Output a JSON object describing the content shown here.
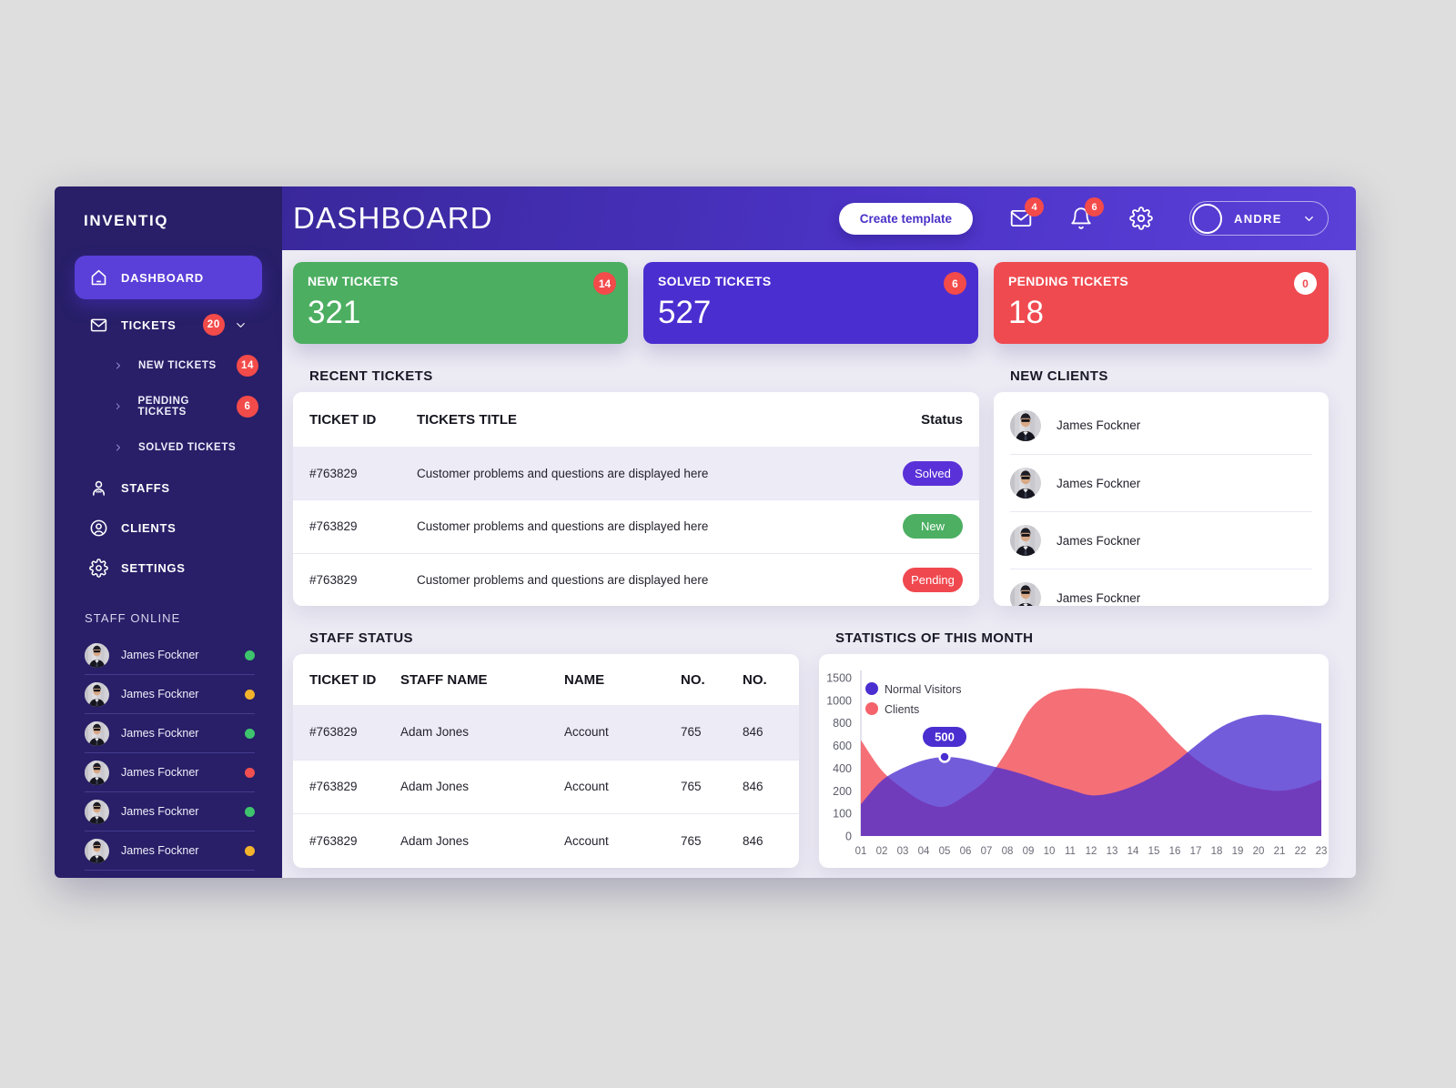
{
  "brand": {
    "name": "INVENTIQ"
  },
  "header": {
    "title": "DASHBOARD",
    "create_button": "Create template",
    "mail_badge": "4",
    "bell_badge": "6",
    "user": {
      "name": "ANDRE"
    }
  },
  "sidebar": {
    "dashboard": {
      "label": "DASHBOARD"
    },
    "tickets": {
      "label": "TICKETS",
      "badge": "20"
    },
    "submenu": [
      {
        "label": "NEW TICKETS",
        "badge": "14"
      },
      {
        "label": "PENDING TICKETS",
        "badge": "6"
      },
      {
        "label": "SOLVED TICKETS",
        "badge": ""
      }
    ],
    "staffs": {
      "label": "STAFFS"
    },
    "clients": {
      "label": "CLIENTS"
    },
    "settings": {
      "label": "SETTINGS"
    },
    "staff_online": {
      "title": "STAFF ONLINE",
      "status_colors": {
        "online": "#3ec46d",
        "away": "#f3b32b",
        "busy": "#f25050"
      },
      "members": [
        {
          "name": "James Fockner",
          "status": "online"
        },
        {
          "name": "James Fockner",
          "status": "away"
        },
        {
          "name": "James Fockner",
          "status": "online"
        },
        {
          "name": "James Fockner",
          "status": "busy"
        },
        {
          "name": "James Fockner",
          "status": "online"
        },
        {
          "name": "James Fockner",
          "status": "away"
        }
      ]
    }
  },
  "stats": [
    {
      "label": "NEW TICKETS",
      "value": "321",
      "badge": "14",
      "color": "#4cae61",
      "badge_style": "red"
    },
    {
      "label": "SOLVED TICKETS",
      "value": "527",
      "badge": "6",
      "color": "#4b2ed0",
      "badge_style": "red"
    },
    {
      "label": "PENDING TICKETS",
      "value": "18",
      "badge": "0",
      "color": "#ef4a50",
      "badge_style": "white"
    }
  ],
  "recent_tickets": {
    "title": "RECENT TICKETS",
    "columns": [
      "TICKET ID",
      "TICKETS TITLE",
      "Status"
    ],
    "rows": [
      {
        "id": "#763829",
        "title": "Customer problems and questions are displayed here",
        "status": "Solved",
        "status_color": "#5a31d8"
      },
      {
        "id": "#763829",
        "title": "Customer problems and questions are displayed here",
        "status": "New",
        "status_color": "#4caf62"
      },
      {
        "id": "#763829",
        "title": "Customer problems and questions are displayed here",
        "status": "Pending",
        "status_color": "#f0484f"
      }
    ]
  },
  "new_clients": {
    "title": "NEW CLIENTS",
    "clients": [
      {
        "name": "James Fockner"
      },
      {
        "name": "James Fockner"
      },
      {
        "name": "James Fockner"
      },
      {
        "name": "James Fockner"
      }
    ]
  },
  "staff_status": {
    "title": "STAFF STATUS",
    "columns": [
      "TICKET ID",
      "STAFF NAME",
      "NAME",
      "NO.",
      "NO."
    ],
    "rows": [
      {
        "id": "#763829",
        "staff_name": "Adam Jones",
        "name": "Account",
        "no1": "765",
        "no2": "846"
      },
      {
        "id": "#763829",
        "staff_name": "Adam Jones",
        "name": "Account",
        "no1": "765",
        "no2": "846"
      },
      {
        "id": "#763829",
        "staff_name": "Adam Jones",
        "name": "Account",
        "no1": "765",
        "no2": "846"
      }
    ]
  },
  "chart_data": {
    "type": "area",
    "title": "STATISTICS OF THIS MONTH",
    "x_labels": [
      "01",
      "02",
      "03",
      "04",
      "05",
      "06",
      "07",
      "08",
      "09",
      "10",
      "11",
      "12",
      "13",
      "14",
      "15",
      "16",
      "17",
      "18",
      "19",
      "20",
      "21",
      "22",
      "23"
    ],
    "yticks": [
      0,
      100,
      200,
      400,
      600,
      800,
      1000,
      1500
    ],
    "grid": false,
    "legend_position": "top-left",
    "series": [
      {
        "name": "Normal Visitors",
        "color": "#4b2ed0",
        "values": [
          140,
          290,
          400,
          470,
          500,
          480,
          430,
          385,
          330,
          265,
          210,
          180,
          190,
          240,
          330,
          450,
          600,
          740,
          830,
          870,
          865,
          830,
          795
        ]
      },
      {
        "name": "Clients",
        "color": "#f4636b",
        "values": [
          650,
          380,
          220,
          150,
          130,
          180,
          300,
          560,
          900,
          1150,
          1250,
          1260,
          1200,
          1050,
          850,
          650,
          480,
          360,
          270,
          220,
          200,
          230,
          300
        ]
      }
    ],
    "tooltip": {
      "series": "Normal Visitors",
      "x_label": "05",
      "value": "500"
    }
  }
}
